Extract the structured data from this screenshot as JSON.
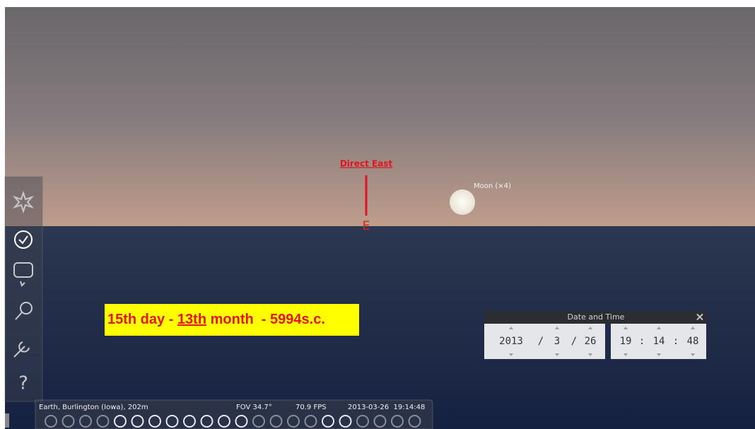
{
  "view": {
    "direction_label": "Direct East",
    "cardinal": "E",
    "moon_label": "Moon (×4)"
  },
  "annotation": {
    "parts": [
      "15th day - ",
      "13th",
      " month  - 5994s.c."
    ]
  },
  "sidebar": {
    "help_icon": "?"
  },
  "date_time_dialog": {
    "title": "Date and Time",
    "close": "×",
    "year": "2013",
    "sep1": "/",
    "month": "3",
    "sep2": "/",
    "day": "26",
    "hour": "19",
    "colon1": ":",
    "minute": "14",
    "colon2": ":",
    "second": "48"
  },
  "status_bar": {
    "location": "Earth, Burlington (Iowa), 202m",
    "fov": "FOV 34.7°",
    "fps": "70.9 FPS",
    "date_time": "2013-03-26  19:14:48"
  }
}
